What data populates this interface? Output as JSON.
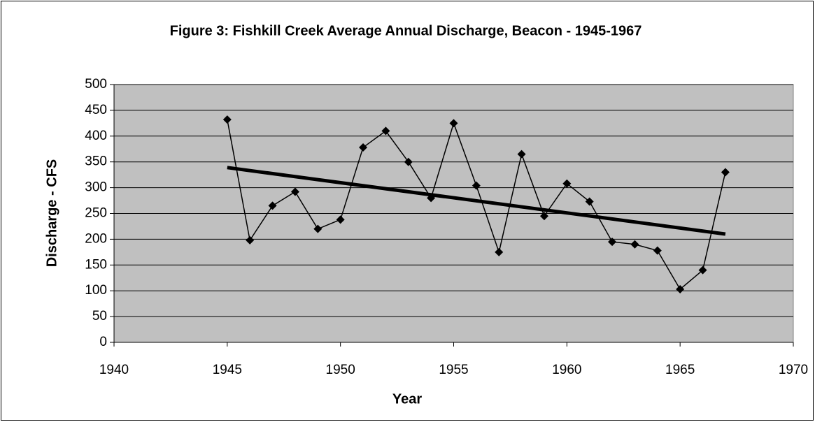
{
  "chart_data": {
    "type": "line",
    "title": "Figure 3:  Fishkill Creek Average Annual Discharge, Beacon - 1945-1967",
    "xlabel": "Year",
    "ylabel": "Discharge - CFS",
    "x": [
      1945,
      1946,
      1947,
      1948,
      1949,
      1950,
      1951,
      1952,
      1953,
      1954,
      1955,
      1956,
      1957,
      1958,
      1959,
      1960,
      1961,
      1962,
      1963,
      1964,
      1965,
      1966,
      1967
    ],
    "series": [
      {
        "color": "#000000",
        "values": [
          432,
          198,
          265,
          292,
          220,
          238,
          378,
          410,
          350,
          280,
          425,
          304,
          175,
          365,
          245,
          308,
          273,
          195,
          190,
          178,
          103,
          140,
          330
        ]
      }
    ],
    "trendline": {
      "color": "#000000",
      "x": [
        1945,
        1967
      ],
      "values": [
        339,
        210
      ]
    },
    "xlim": [
      1940,
      1970
    ],
    "xticks": [
      1940,
      1945,
      1950,
      1955,
      1960,
      1965,
      1970
    ],
    "ylim": [
      0,
      500
    ],
    "yticks": [
      0,
      50,
      100,
      150,
      200,
      250,
      300,
      350,
      400,
      450,
      500
    ],
    "grid": true,
    "plot_background": "#c0c0c0"
  }
}
